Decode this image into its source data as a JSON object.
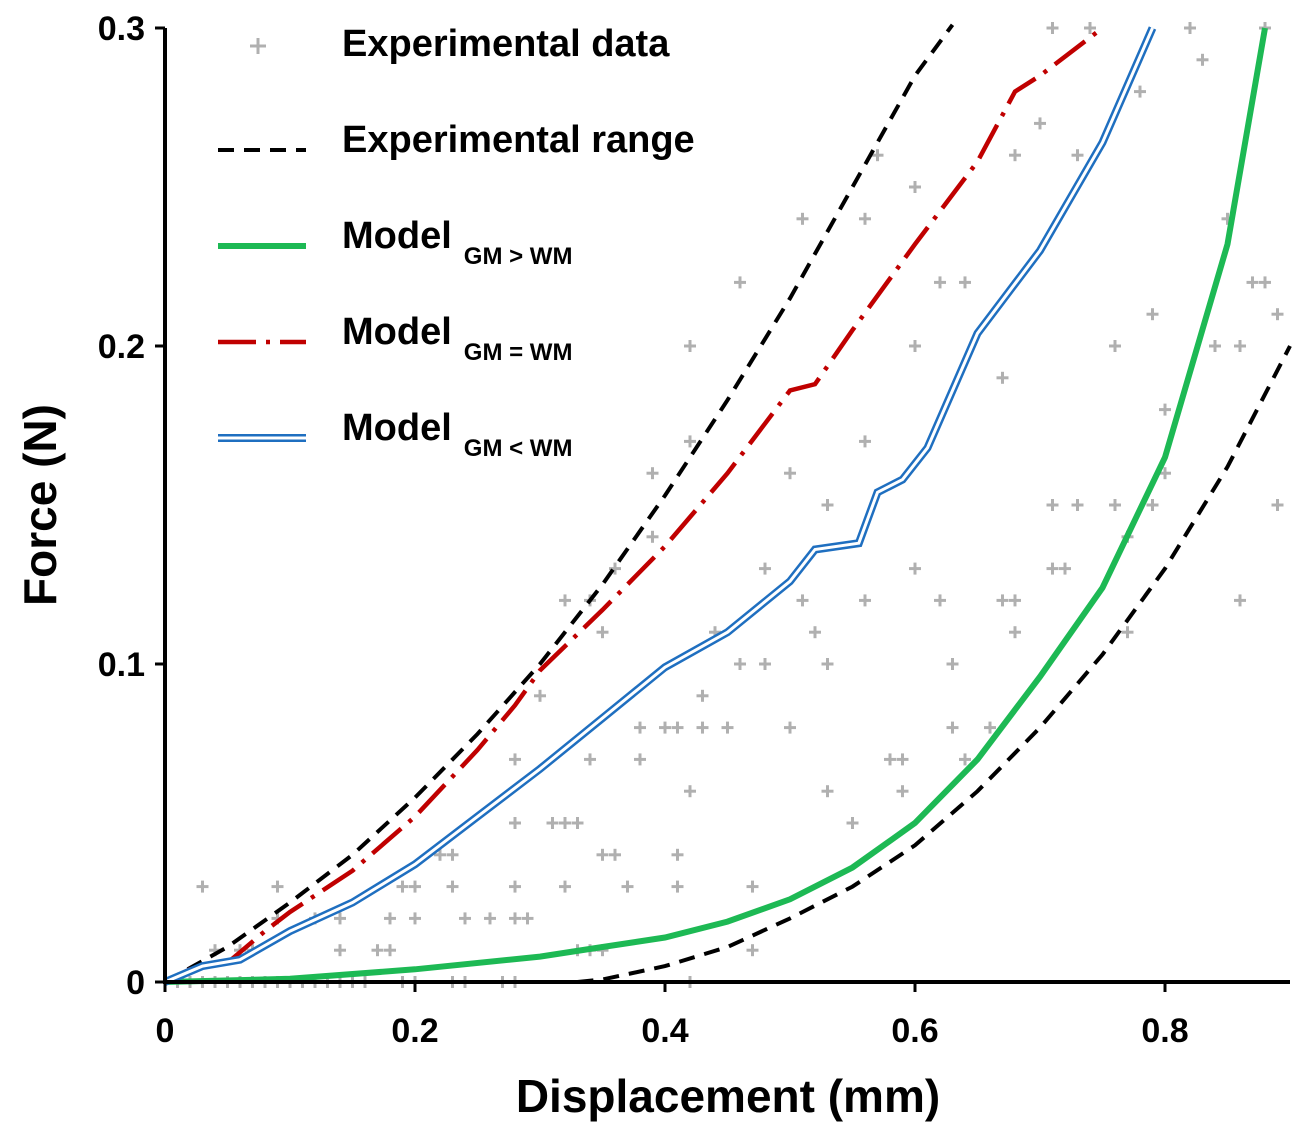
{
  "chart_data": {
    "type": "line",
    "xlabel": "Displacement (mm)",
    "ylabel": "Force (N)",
    "xlim": [
      0,
      0.9
    ],
    "ylim": [
      0,
      0.3
    ],
    "xticks": [
      0,
      0.2,
      0.4,
      0.6,
      0.8
    ],
    "xtick_labels": [
      "0",
      "0.2",
      "0.4",
      "0.6",
      "0.8"
    ],
    "yticks": [
      0,
      0.1,
      0.2,
      0.3
    ],
    "ytick_labels": [
      "0",
      "0.1",
      "0.2",
      "0.3"
    ],
    "grid": false,
    "legend_position": "top-left",
    "legend": [
      {
        "label": "Experimental data",
        "sub": "",
        "key": "experimental_data"
      },
      {
        "label": "Experimental range",
        "sub": "",
        "key": "range_upper"
      },
      {
        "label": "Model",
        "sub": "GM > WM",
        "key": "model_gm_gt_wm"
      },
      {
        "label": "Model",
        "sub": "GM = WM",
        "key": "model_gm_eq_wm"
      },
      {
        "label": "Model",
        "sub": "GM < WM",
        "key": "model_gm_lt_wm"
      }
    ],
    "colors": {
      "experimental_data": "#b0b0b0",
      "experimental_range": "#000000",
      "model_gm_gt_wm": "#1db954",
      "model_gm_eq_wm": "#c00000",
      "model_gm_lt_wm": "#1f6fc0"
    },
    "series": [
      {
        "key": "range_upper",
        "style": "dashed-black",
        "x": [
          0,
          0.05,
          0.1,
          0.15,
          0.2,
          0.25,
          0.3,
          0.35,
          0.4,
          0.45,
          0.5,
          0.55,
          0.6,
          0.63
        ],
        "y": [
          0,
          0.011,
          0.025,
          0.04,
          0.058,
          0.078,
          0.1,
          0.125,
          0.153,
          0.183,
          0.215,
          0.25,
          0.285,
          0.301
        ]
      },
      {
        "key": "range_lower",
        "style": "dashed-black",
        "x": [
          0.33,
          0.35,
          0.4,
          0.45,
          0.5,
          0.55,
          0.6,
          0.65,
          0.7,
          0.75,
          0.8,
          0.85,
          0.9
        ],
        "y": [
          0,
          0.0008,
          0.005,
          0.011,
          0.02,
          0.03,
          0.043,
          0.06,
          0.08,
          0.103,
          0.13,
          0.162,
          0.2
        ]
      },
      {
        "key": "model_gm_gt_wm",
        "style": "solid-green",
        "x": [
          0,
          0.1,
          0.2,
          0.3,
          0.35,
          0.4,
          0.45,
          0.5,
          0.55,
          0.6,
          0.65,
          0.7,
          0.75,
          0.8,
          0.85,
          0.88
        ],
        "y": [
          0,
          0.001,
          0.004,
          0.008,
          0.011,
          0.014,
          0.019,
          0.026,
          0.036,
          0.05,
          0.07,
          0.096,
          0.124,
          0.165,
          0.232,
          0.3
        ]
      },
      {
        "key": "model_gm_eq_wm",
        "style": "dashdot-red",
        "x": [
          0,
          0.02,
          0.05,
          0.08,
          0.1,
          0.15,
          0.2,
          0.25,
          0.28,
          0.3,
          0.35,
          0.4,
          0.45,
          0.5,
          0.52,
          0.55,
          0.6,
          0.65,
          0.68,
          0.7,
          0.75
        ],
        "y": [
          0,
          0.004,
          0.006,
          0.016,
          0.022,
          0.035,
          0.052,
          0.073,
          0.087,
          0.098,
          0.117,
          0.137,
          0.16,
          0.186,
          0.188,
          0.205,
          0.232,
          0.258,
          0.28,
          0.285,
          0.3
        ]
      },
      {
        "key": "model_gm_lt_wm",
        "style": "double-blue",
        "x": [
          0,
          0.03,
          0.06,
          0.1,
          0.15,
          0.2,
          0.25,
          0.3,
          0.35,
          0.4,
          0.45,
          0.5,
          0.52,
          0.555,
          0.57,
          0.59,
          0.61,
          0.65,
          0.7,
          0.75,
          0.79
        ],
        "y": [
          0,
          0.005,
          0.007,
          0.016,
          0.025,
          0.037,
          0.052,
          0.067,
          0.083,
          0.099,
          0.11,
          0.126,
          0.136,
          0.138,
          0.154,
          0.158,
          0.168,
          0.204,
          0.23,
          0.264,
          0.3
        ]
      }
    ],
    "scatter": {
      "key": "experimental_data",
      "points": [
        [
          0.0,
          0.0
        ],
        [
          0.01,
          0.0
        ],
        [
          0.02,
          0.0
        ],
        [
          0.03,
          0.0
        ],
        [
          0.04,
          0.0
        ],
        [
          0.05,
          0.0
        ],
        [
          0.06,
          0.0
        ],
        [
          0.07,
          0.0
        ],
        [
          0.08,
          0.0
        ],
        [
          0.09,
          0.0
        ],
        [
          0.1,
          0.0
        ],
        [
          0.11,
          0.0
        ],
        [
          0.12,
          0.0
        ],
        [
          0.13,
          0.0
        ],
        [
          0.14,
          0.0
        ],
        [
          0.15,
          0.0
        ],
        [
          0.16,
          0.0
        ],
        [
          0.19,
          0.0
        ],
        [
          0.2,
          0.0
        ],
        [
          0.23,
          0.0
        ],
        [
          0.24,
          0.0
        ],
        [
          0.27,
          0.0
        ],
        [
          0.28,
          0.0
        ],
        [
          0.42,
          0.0
        ],
        [
          0.03,
          0.03
        ],
        [
          0.04,
          0.01
        ],
        [
          0.06,
          0.01
        ],
        [
          0.07,
          0.01
        ],
        [
          0.09,
          0.02
        ],
        [
          0.09,
          0.03
        ],
        [
          0.12,
          0.02
        ],
        [
          0.14,
          0.01
        ],
        [
          0.14,
          0.02
        ],
        [
          0.17,
          0.01
        ],
        [
          0.18,
          0.01
        ],
        [
          0.18,
          0.02
        ],
        [
          0.2,
          0.02
        ],
        [
          0.2,
          0.03
        ],
        [
          0.19,
          0.03
        ],
        [
          0.22,
          0.04
        ],
        [
          0.23,
          0.03
        ],
        [
          0.23,
          0.04
        ],
        [
          0.24,
          0.02
        ],
        [
          0.26,
          0.02
        ],
        [
          0.28,
          0.02
        ],
        [
          0.29,
          0.02
        ],
        [
          0.28,
          0.03
        ],
        [
          0.28,
          0.05
        ],
        [
          0.28,
          0.07
        ],
        [
          0.3,
          0.09
        ],
        [
          0.31,
          0.05
        ],
        [
          0.32,
          0.05
        ],
        [
          0.33,
          0.05
        ],
        [
          0.32,
          0.03
        ],
        [
          0.32,
          0.12
        ],
        [
          0.33,
          0.01
        ],
        [
          0.34,
          0.01
        ],
        [
          0.35,
          0.01
        ],
        [
          0.35,
          0.04
        ],
        [
          0.36,
          0.04
        ],
        [
          0.34,
          0.07
        ],
        [
          0.35,
          0.11
        ],
        [
          0.34,
          0.12
        ],
        [
          0.36,
          0.13
        ],
        [
          0.37,
          0.03
        ],
        [
          0.38,
          0.07
        ],
        [
          0.38,
          0.08
        ],
        [
          0.39,
          0.14
        ],
        [
          0.39,
          0.16
        ],
        [
          0.4,
          0.08
        ],
        [
          0.41,
          0.08
        ],
        [
          0.41,
          0.04
        ],
        [
          0.41,
          0.03
        ],
        [
          0.42,
          0.06
        ],
        [
          0.43,
          0.08
        ],
        [
          0.43,
          0.09
        ],
        [
          0.44,
          0.11
        ],
        [
          0.42,
          0.17
        ],
        [
          0.42,
          0.2
        ],
        [
          0.45,
          0.08
        ],
        [
          0.46,
          0.1
        ],
        [
          0.46,
          0.22
        ],
        [
          0.47,
          0.03
        ],
        [
          0.48,
          0.13
        ],
        [
          0.48,
          0.1
        ],
        [
          0.47,
          0.01
        ],
        [
          0.5,
          0.08
        ],
        [
          0.5,
          0.16
        ],
        [
          0.51,
          0.12
        ],
        [
          0.51,
          0.24
        ],
        [
          0.52,
          0.11
        ],
        [
          0.53,
          0.06
        ],
        [
          0.53,
          0.1
        ],
        [
          0.53,
          0.15
        ],
        [
          0.55,
          0.05
        ],
        [
          0.56,
          0.12
        ],
        [
          0.56,
          0.17
        ],
        [
          0.56,
          0.24
        ],
        [
          0.57,
          0.26
        ],
        [
          0.58,
          0.07
        ],
        [
          0.59,
          0.07
        ],
        [
          0.59,
          0.06
        ],
        [
          0.6,
          0.13
        ],
        [
          0.6,
          0.2
        ],
        [
          0.6,
          0.25
        ],
        [
          0.62,
          0.12
        ],
        [
          0.62,
          0.22
        ],
        [
          0.63,
          0.08
        ],
        [
          0.63,
          0.1
        ],
        [
          0.64,
          0.07
        ],
        [
          0.64,
          0.22
        ],
        [
          0.66,
          0.08
        ],
        [
          0.67,
          0.12
        ],
        [
          0.67,
          0.19
        ],
        [
          0.68,
          0.11
        ],
        [
          0.68,
          0.12
        ],
        [
          0.68,
          0.26
        ],
        [
          0.7,
          0.27
        ],
        [
          0.71,
          0.13
        ],
        [
          0.71,
          0.15
        ],
        [
          0.71,
          0.3
        ],
        [
          0.72,
          0.13
        ],
        [
          0.73,
          0.15
        ],
        [
          0.73,
          0.26
        ],
        [
          0.74,
          0.3
        ],
        [
          0.76,
          0.15
        ],
        [
          0.76,
          0.2
        ],
        [
          0.77,
          0.14
        ],
        [
          0.77,
          0.11
        ],
        [
          0.78,
          0.28
        ],
        [
          0.79,
          0.21
        ],
        [
          0.79,
          0.15
        ],
        [
          0.8,
          0.16
        ],
        [
          0.8,
          0.18
        ],
        [
          0.82,
          0.3
        ],
        [
          0.83,
          0.29
        ],
        [
          0.84,
          0.2
        ],
        [
          0.85,
          0.24
        ],
        [
          0.86,
          0.2
        ],
        [
          0.86,
          0.12
        ],
        [
          0.87,
          0.22
        ],
        [
          0.88,
          0.3
        ],
        [
          0.88,
          0.22
        ],
        [
          0.89,
          0.21
        ],
        [
          0.89,
          0.15
        ]
      ]
    }
  }
}
